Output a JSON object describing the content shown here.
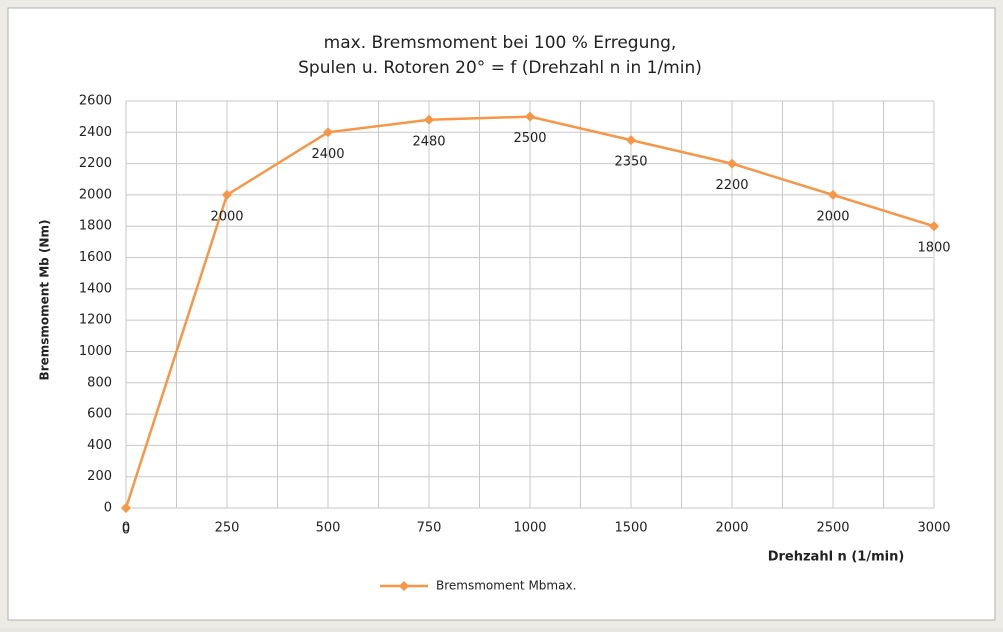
{
  "chart_data": {
    "type": "line",
    "title": [
      "max. Bremsmoment bei 100 % Erregung,",
      "Spulen u. Rotoren 20° = f (Drehzahl n in 1/min)"
    ],
    "x_label": "Drehzahl n (1/min)",
    "y_label": "Bremsmoment Mb (Nm)",
    "categories": [
      "0",
      "250",
      "500",
      "750",
      "1000",
      "1500",
      "2000",
      "2500",
      "3000"
    ],
    "series": [
      {
        "name": "Bremsmoment Mbmax.",
        "color": "#f79646",
        "values": [
          0,
          2000,
          2400,
          2480,
          2500,
          2350,
          2200,
          2000,
          1800
        ]
      }
    ],
    "ylim": [
      0,
      2600
    ],
    "yticks": [
      0,
      200,
      400,
      600,
      800,
      1000,
      1200,
      1400,
      1600,
      1800,
      2000,
      2200,
      2400,
      2600
    ],
    "grid": true,
    "data_labels": true,
    "legend": "bottom"
  }
}
